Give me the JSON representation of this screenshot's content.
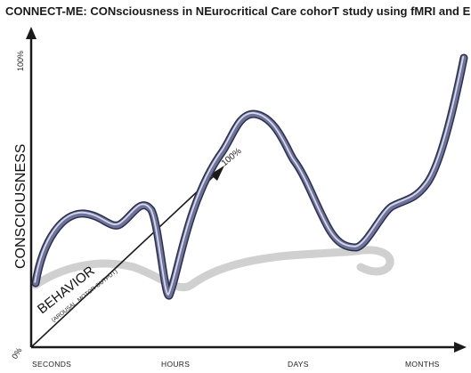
{
  "title": "CONNECT-ME: CONsciousness in NEurocritical Care cohorT study using fMRI and EEG",
  "y_axis": {
    "label": "CONSCIOUSNESS",
    "top_label": "100%",
    "origin_label": "0%"
  },
  "x_axis": {
    "ticks": [
      "SECONDS",
      "HOURS",
      "DAYS",
      "MONTHS"
    ]
  },
  "behavior_axis": {
    "label": "BEHAVIOR",
    "sublabel": "(AROUSAL, MOTOR OUTPUT)",
    "end_label": "100%"
  },
  "colors": {
    "curve_outer": "#2b2f4f",
    "curve_main": "#6f7399",
    "curve_highlight": "#d7d9ea",
    "shadow": "#cfcfcf",
    "axis": "#1a1a1a"
  }
}
